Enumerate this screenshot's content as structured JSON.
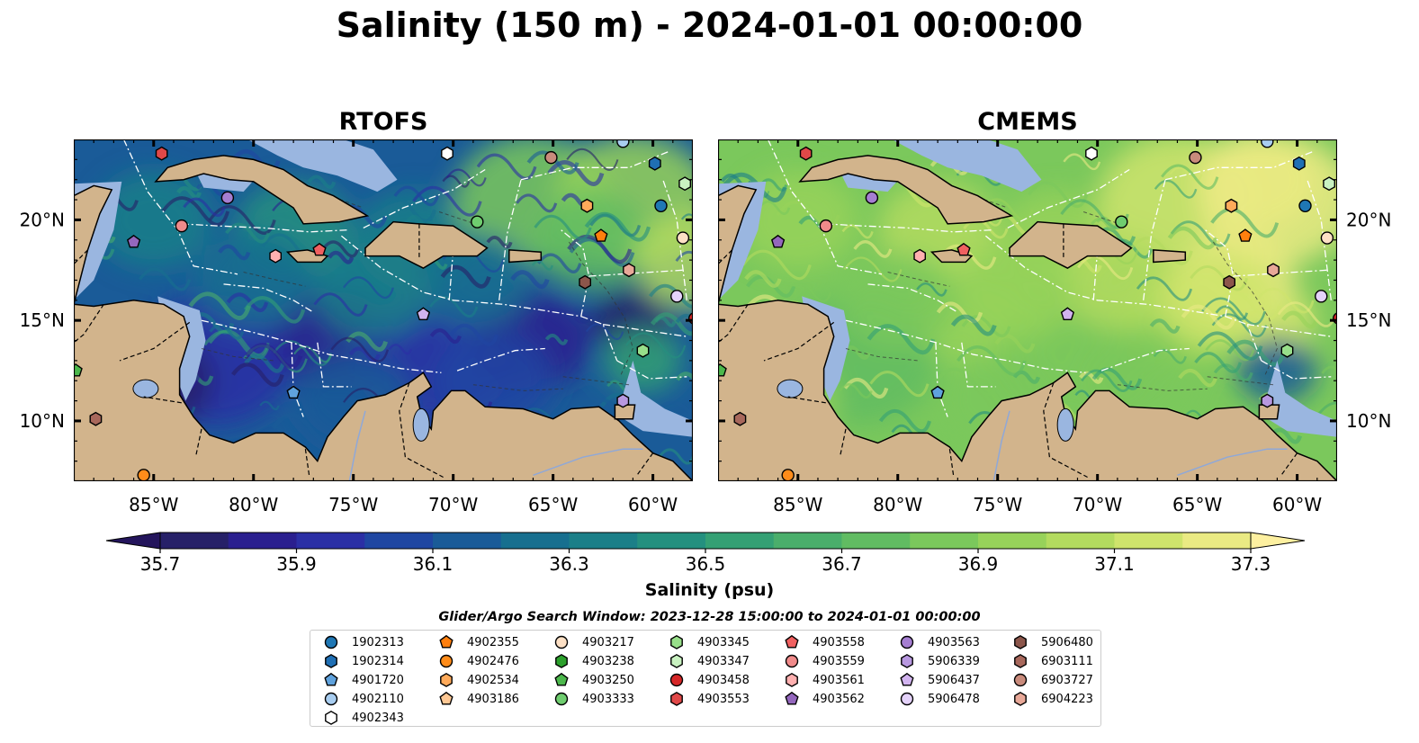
{
  "title": "Salinity (150 m) - 2024-01-01 00:00:00",
  "panels": [
    {
      "title": "RTOFS",
      "palette": "rtofs"
    },
    {
      "title": "CMEMS",
      "palette": "cmems"
    }
  ],
  "axes": {
    "lon_ticks": [
      "85°W",
      "80°W",
      "75°W",
      "70°W",
      "65°W",
      "60°W"
    ],
    "lon_values": [
      -85,
      -80,
      -75,
      -70,
      -65,
      -60
    ],
    "lat_ticks": [
      "10°N",
      "15°N",
      "20°N"
    ],
    "lat_values": [
      10,
      15,
      20
    ],
    "lon_range": [
      -89,
      -58
    ],
    "lat_range": [
      7,
      24
    ]
  },
  "colorbar": {
    "label": "Salinity (psu)",
    "ticks": [
      "35.7",
      "35.9",
      "36.1",
      "36.3",
      "36.5",
      "36.7",
      "36.9",
      "37.1",
      "37.3"
    ],
    "range": [
      35.7,
      37.3
    ],
    "extend": "both",
    "colors": [
      "#262068",
      "#2a1f8f",
      "#2b2fa5",
      "#1f46a2",
      "#1a5b98",
      "#176f8f",
      "#1b7f88",
      "#24907f",
      "#34a074",
      "#4aae6b",
      "#61bc62",
      "#7bc85c",
      "#97d25a",
      "#b3db5f",
      "#cfe46c",
      "#eaea83"
    ],
    "under_color": "#24155c",
    "over_color": "#fdf0a0"
  },
  "search_window": "Glider/Argo Search Window: 2023-12-28 15:00:00 to 2024-01-01 00:00:00",
  "floats": [
    {
      "id": "1902313",
      "marker": "circle",
      "color": "#1f77b4",
      "lon": -59.6,
      "lat": 20.7
    },
    {
      "id": "1902314",
      "marker": "hexagon",
      "color": "#1f6fb4",
      "lon": -59.9,
      "lat": 22.8
    },
    {
      "id": "4901720",
      "marker": "pentagon",
      "color": "#5fa2dd",
      "lon": -78.0,
      "lat": 11.4
    },
    {
      "id": "4902110",
      "marker": "circle",
      "color": "#a8cdf0",
      "lon": -61.5,
      "lat": 23.9
    },
    {
      "id": "4902343",
      "marker": "hexagon",
      "color": "#ffffff",
      "lon": -70.3,
      "lat": 23.3
    },
    {
      "id": "4902355",
      "marker": "pentagon",
      "color": "#ff7f0e",
      "lon": -62.6,
      "lat": 19.2
    },
    {
      "id": "4902476",
      "marker": "circle",
      "color": "#ff8c1a",
      "lon": -85.5,
      "lat": 7.3
    },
    {
      "id": "4902534",
      "marker": "hexagon",
      "color": "#ffaa5a",
      "lon": -63.3,
      "lat": 20.7
    },
    {
      "id": "4903186",
      "marker": "pentagon",
      "color": "#ffc894",
      "lon": -89.3,
      "lat": 9.6
    },
    {
      "id": "4903217",
      "marker": "circle",
      "color": "#fde0c5",
      "lon": -58.5,
      "lat": 19.1
    },
    {
      "id": "4903238",
      "marker": "hexagon",
      "color": "#2ca02c",
      "lon": -89.5,
      "lat": 12.0
    },
    {
      "id": "4903250",
      "marker": "pentagon",
      "color": "#4cb84c",
      "lon": -88.9,
      "lat": 12.5
    },
    {
      "id": "4903333",
      "marker": "circle",
      "color": "#6fcd6f",
      "lon": -68.8,
      "lat": 19.9
    },
    {
      "id": "4903345",
      "marker": "hexagon",
      "color": "#98df8a",
      "lon": -60.5,
      "lat": 13.5
    },
    {
      "id": "4903347",
      "marker": "hexagon",
      "color": "#c9f2c1",
      "lon": -58.4,
      "lat": 21.8
    },
    {
      "id": "4903458",
      "marker": "circle",
      "color": "#d62728",
      "lon": -57.9,
      "lat": 15.1
    },
    {
      "id": "4903553",
      "marker": "hexagon",
      "color": "#e04848",
      "lon": -84.6,
      "lat": 23.3
    },
    {
      "id": "4903558",
      "marker": "pentagon",
      "color": "#f06060",
      "lon": -76.7,
      "lat": 18.5
    },
    {
      "id": "4903559",
      "marker": "circle",
      "color": "#f08a8a",
      "lon": -83.6,
      "lat": 19.7
    },
    {
      "id": "4903561",
      "marker": "hexagon",
      "color": "#ffb0b0",
      "lon": -78.9,
      "lat": 18.2
    },
    {
      "id": "4903562",
      "marker": "pentagon",
      "color": "#9467bd",
      "lon": -86.0,
      "lat": 18.9
    },
    {
      "id": "4903563",
      "marker": "circle",
      "color": "#a57ed1",
      "lon": -81.3,
      "lat": 21.1
    },
    {
      "id": "5906339",
      "marker": "hexagon",
      "color": "#b898e0",
      "lon": -61.5,
      "lat": 11.0
    },
    {
      "id": "5906437",
      "marker": "pentagon",
      "color": "#d2b4f0",
      "lon": -71.5,
      "lat": 15.3
    },
    {
      "id": "5906478",
      "marker": "circle",
      "color": "#e4d2fa",
      "lon": -58.8,
      "lat": 16.2
    },
    {
      "id": "5906480",
      "marker": "hexagon",
      "color": "#8c564b",
      "lon": -63.4,
      "lat": 16.9
    },
    {
      "id": "6903111",
      "marker": "hexagon",
      "color": "#a8685c",
      "lon": -87.9,
      "lat": 10.1
    },
    {
      "id": "6903727",
      "marker": "circle",
      "color": "#c98b7c",
      "lon": -65.1,
      "lat": 23.1
    },
    {
      "id": "6904223",
      "marker": "hexagon",
      "color": "#e8a898",
      "lon": -61.2,
      "lat": 17.5
    }
  ],
  "colors": {
    "land": "#d2b48c",
    "shelf": "#9ab6e0",
    "coast": "#000000",
    "eez_lines": "#ffffff"
  }
}
